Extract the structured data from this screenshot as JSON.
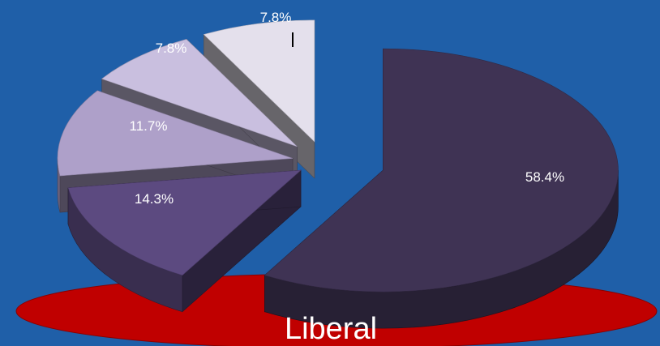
{
  "chart_data": {
    "type": "pie",
    "style": "3d-exploded",
    "caption": "Liberal",
    "slices": [
      {
        "label": "58.4%",
        "value": 58.4,
        "color": "#3f3354"
      },
      {
        "label": "14.3%",
        "value": 14.3,
        "color": "#5c4a80"
      },
      {
        "label": "11.7%",
        "value": 11.7,
        "color": "#aea0c9"
      },
      {
        "label": "7.8%",
        "value": 7.8,
        "color": "#c9bfdf"
      },
      {
        "label": "7.8%",
        "value": 7.8,
        "color": "#e4e0ec"
      }
    ]
  },
  "colors": {
    "background": "#1f5fa8",
    "caption_ellipse": "#c00000"
  }
}
